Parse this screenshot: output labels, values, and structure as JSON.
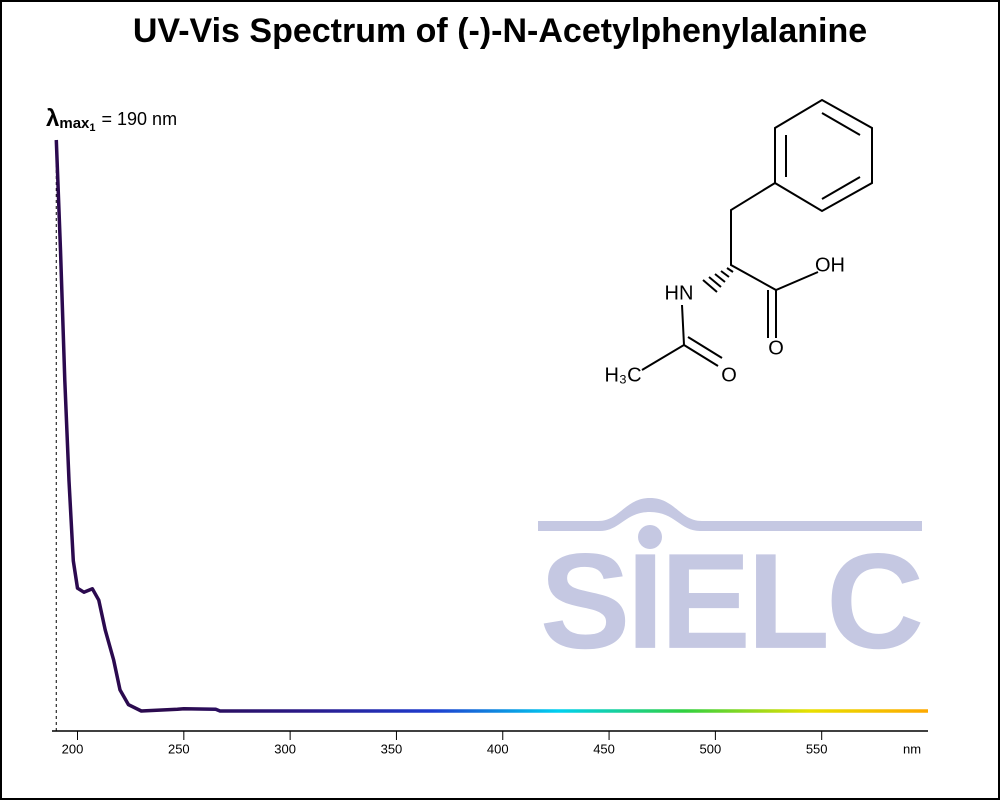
{
  "chart_data": {
    "type": "line",
    "title": "UV-Vis Spectrum of (-)-N-Acetylphenylalanine",
    "x_label": "nm",
    "x": [
      190,
      192,
      194,
      196,
      198,
      200,
      203,
      207,
      210,
      213,
      217,
      220,
      224,
      230,
      247,
      250,
      265,
      267,
      600
    ],
    "values": [
      1.0,
      0.807,
      0.579,
      0.403,
      0.263,
      0.215,
      0.208,
      0.214,
      0.194,
      0.142,
      0.089,
      0.037,
      0.011,
      0,
      0.003,
      0.004,
      0.003,
      0,
      0
    ],
    "xlim": [
      188,
      600
    ],
    "xticks": [
      200,
      250,
      300,
      350,
      400,
      450,
      500,
      550
    ],
    "color": "#2b0a4f",
    "gradient": [
      "#2b0a4f",
      "#2b0a4f",
      "#2a1a8a",
      "#1e3ccf",
      "#00d0f0",
      "#30d040",
      "#e8e000",
      "#ffa500"
    ],
    "annotation": {
      "symbol": "λ",
      "sub": "max",
      "subsub": "1",
      "text": "= 190 nm",
      "x": 190
    },
    "structure_labels": [
      "OH",
      "HN",
      "O",
      "H₃C",
      "O"
    ],
    "watermark": "SIELC"
  }
}
